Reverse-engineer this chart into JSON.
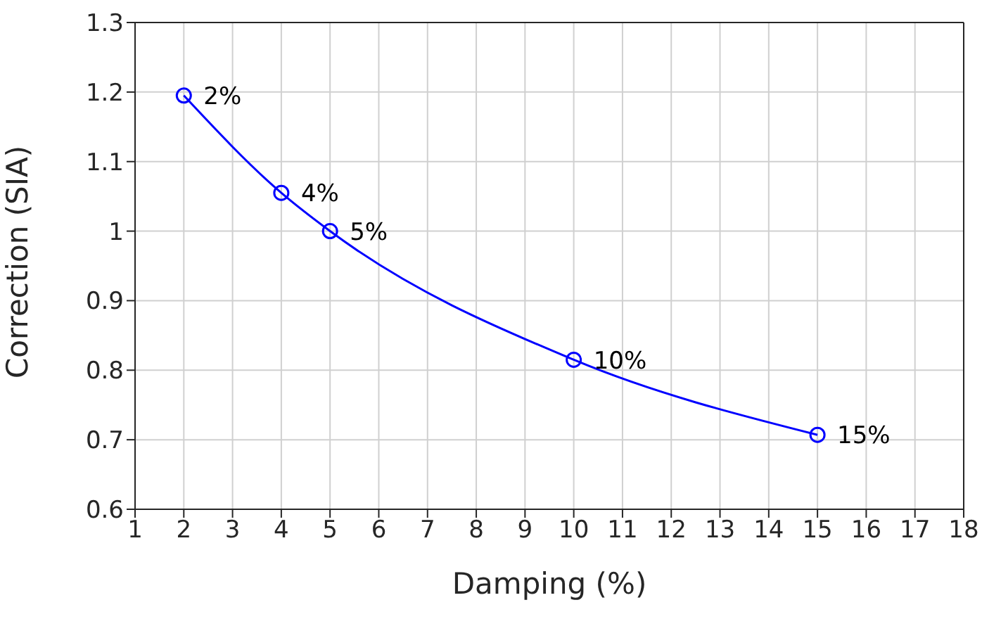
{
  "chart_data": {
    "type": "line",
    "xlabel": "Damping (%)",
    "ylabel": "Correction (SIA)",
    "x": [
      2,
      4,
      5,
      10,
      15
    ],
    "series": [
      {
        "color": "#0000ff",
        "values": [
          1.195,
          1.055,
          1.0,
          0.815,
          0.707
        ]
      }
    ],
    "xlim": [
      1,
      18
    ],
    "xticks": [
      1,
      2,
      3,
      4,
      5,
      6,
      7,
      8,
      9,
      10,
      11,
      12,
      13,
      14,
      15,
      16,
      17,
      18
    ],
    "ylim": [
      0.6,
      1.3
    ],
    "yticks": [
      0.6,
      0.7,
      0.8,
      0.9,
      1,
      1.1,
      1.2,
      1.3
    ],
    "grid": true,
    "marker": "circle",
    "line_style": "solid",
    "legend": false,
    "annotations": [
      {
        "text": "2%",
        "x": 2,
        "y": 1.195
      },
      {
        "text": "4%",
        "x": 4,
        "y": 1.055
      },
      {
        "text": "5%",
        "x": 5,
        "y": 1.0
      },
      {
        "text": "10%",
        "x": 10,
        "y": 0.815
      },
      {
        "text": "15%",
        "x": 15,
        "y": 0.707
      }
    ]
  }
}
